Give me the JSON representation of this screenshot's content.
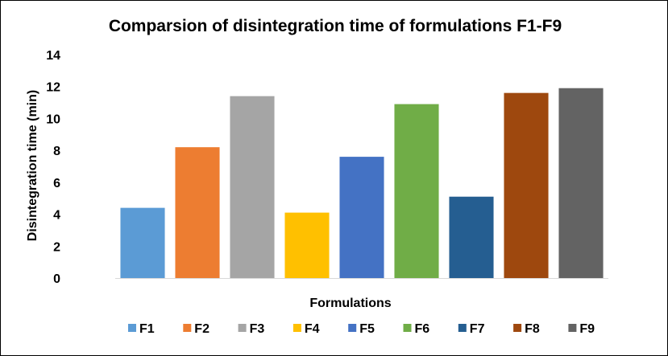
{
  "chart_data": {
    "type": "bar",
    "title": "Comparsion of disintegration time of formulations F1-F9",
    "xlabel": "Formulations",
    "ylabel": "Disintegration time (min)",
    "categories": [
      "F1",
      "F2",
      "F3",
      "F4",
      "F5",
      "F6",
      "F7",
      "F8",
      "F9"
    ],
    "values": [
      4.4,
      8.2,
      11.4,
      4.1,
      7.6,
      10.9,
      5.1,
      11.6,
      11.9
    ],
    "colors": [
      "#5b9bd5",
      "#ed7d31",
      "#a5a5a5",
      "#ffc000",
      "#4472c4",
      "#70ad47",
      "#255e91",
      "#9e480e",
      "#636363"
    ],
    "ylim": [
      0,
      14
    ],
    "yticks": [
      "0",
      "2",
      "4",
      "6",
      "8",
      "10",
      "12",
      "14"
    ],
    "grid": false,
    "legend": "bottom"
  }
}
